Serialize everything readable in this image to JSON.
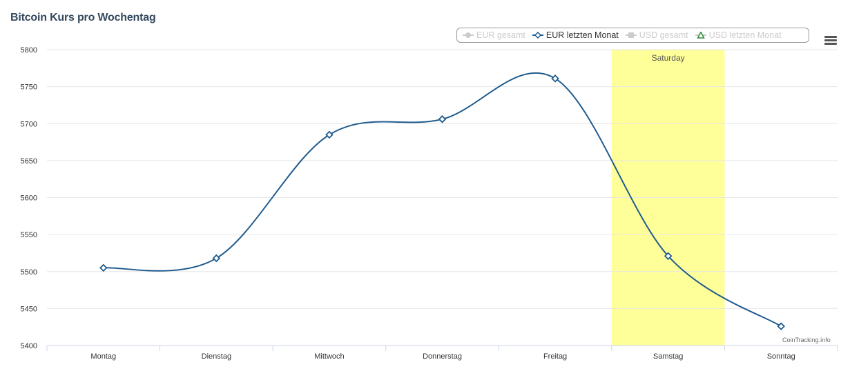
{
  "title": "Bitcoin Kurs pro Wochentag",
  "legend": [
    {
      "label": "EUR gesamt",
      "marker": "circle",
      "color": "#cccccc",
      "state": "hidden"
    },
    {
      "label": "EUR letzten Monat",
      "marker": "diamond",
      "color": "#1f5b8e",
      "state": "visible"
    },
    {
      "label": "USD gesamt",
      "marker": "square",
      "color": "#cccccc",
      "state": "hidden"
    },
    {
      "label": "USD letzten Monat",
      "marker": "triangle",
      "color": "#2e8b3a",
      "state": "hidden"
    }
  ],
  "menu_icon": "hamburger-menu-icon",
  "credit": "CoinTracking.info",
  "colors": {
    "series_line": "#1f5b8e",
    "grid": "#e6e6e6",
    "highlight_band": "#ffff99"
  },
  "chart_data": {
    "type": "line",
    "title": "Bitcoin Kurs pro Wochentag",
    "categories": [
      "Montag",
      "Dienstag",
      "Mittwoch",
      "Donnerstag",
      "Freitag",
      "Samstag",
      "Sonntag"
    ],
    "series": [
      {
        "name": "EUR letzten Monat",
        "values": [
          5505,
          5518,
          5685,
          5706,
          5761,
          5521,
          5426
        ]
      }
    ],
    "ylim": [
      5400,
      5800
    ],
    "yticks": [
      5400,
      5450,
      5500,
      5550,
      5600,
      5650,
      5700,
      5750,
      5800
    ],
    "grid": true,
    "legend_position": "top-right",
    "plot_band": {
      "category": "Samstag",
      "label": "Saturday"
    }
  }
}
